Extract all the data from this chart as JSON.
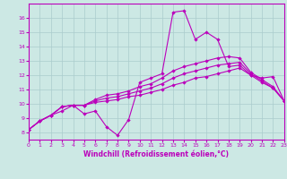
{
  "xlabel": "Windchill (Refroidissement éolien,°C)",
  "background_color": "#cce8e4",
  "grid_color": "#aacccc",
  "line_color": "#bb00bb",
  "xlim": [
    0,
    23
  ],
  "ylim": [
    7.5,
    17.0
  ],
  "xticks": [
    0,
    1,
    2,
    3,
    4,
    5,
    6,
    7,
    8,
    9,
    10,
    11,
    12,
    13,
    14,
    15,
    16,
    17,
    18,
    19,
    20,
    21,
    22,
    23
  ],
  "yticks": [
    8,
    9,
    10,
    11,
    12,
    13,
    14,
    15,
    16
  ],
  "main_series": [
    8.2,
    8.8,
    9.2,
    9.5,
    9.9,
    9.3,
    9.5,
    8.4,
    7.8,
    8.9,
    11.5,
    11.8,
    12.1,
    16.4,
    16.5,
    14.5,
    15.0,
    14.5,
    12.6,
    12.7,
    12.0,
    11.8,
    11.9,
    10.2
  ],
  "trend1": [
    8.2,
    8.8,
    9.2,
    9.8,
    9.9,
    9.9,
    10.1,
    10.2,
    10.3,
    10.5,
    10.6,
    10.8,
    11.0,
    11.3,
    11.5,
    11.8,
    11.9,
    12.1,
    12.3,
    12.5,
    12.0,
    11.5,
    11.1,
    10.2
  ],
  "trend2": [
    8.2,
    8.8,
    9.2,
    9.8,
    9.9,
    9.9,
    10.2,
    10.4,
    10.5,
    10.7,
    10.9,
    11.1,
    11.4,
    11.8,
    12.1,
    12.3,
    12.5,
    12.7,
    12.8,
    12.9,
    12.1,
    11.6,
    11.1,
    10.2
  ],
  "trend3": [
    8.2,
    8.8,
    9.2,
    9.8,
    9.9,
    9.9,
    10.3,
    10.6,
    10.7,
    10.9,
    11.2,
    11.4,
    11.8,
    12.3,
    12.6,
    12.8,
    13.0,
    13.2,
    13.3,
    13.2,
    12.2,
    11.7,
    11.2,
    10.2
  ]
}
